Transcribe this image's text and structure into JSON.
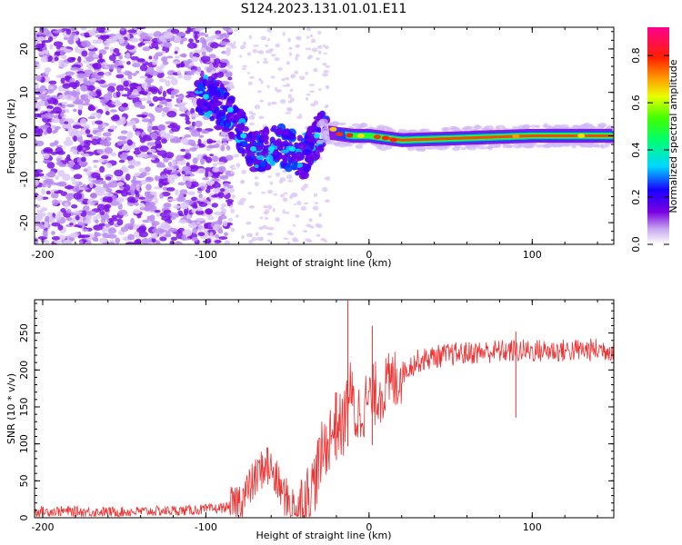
{
  "figure": {
    "title": "S124.2023.131.01.01.E11"
  },
  "chart_data": [
    {
      "type": "heatmap",
      "xlabel": "Height of straight line (km)",
      "ylabel": "Frequency (Hz)",
      "xlim": [
        -205,
        150
      ],
      "ylim": [
        -25,
        25
      ],
      "xticks": [
        -200,
        -100,
        0,
        100
      ],
      "yticks": [
        -20,
        -10,
        0,
        10,
        20
      ],
      "grid": false,
      "colorbar": {
        "label": "Normalized spectral amplitude",
        "range": [
          0,
          0.92
        ],
        "ticks": [
          0.0,
          0.2,
          0.4,
          0.6,
          0.8
        ],
        "colormap": "hsv-rainbow"
      },
      "ridge": [
        {
          "x": -100,
          "y": 9
        },
        {
          "x": -90,
          "y": 7
        },
        {
          "x": -80,
          "y": 2
        },
        {
          "x": -70,
          "y": -4
        },
        {
          "x": -55,
          "y": -2
        },
        {
          "x": -40,
          "y": -5
        },
        {
          "x": -30,
          "y": 1
        },
        {
          "x": -20,
          "y": 0.5
        },
        {
          "x": -10,
          "y": 0
        },
        {
          "x": 0,
          "y": 0
        },
        {
          "x": 20,
          "y": -1
        },
        {
          "x": 60,
          "y": -0.5
        },
        {
          "x": 100,
          "y": 0
        },
        {
          "x": 150,
          "y": 0
        }
      ]
    },
    {
      "type": "line",
      "xlabel": "Height of straight line (km)",
      "ylabel": "SNR (10 * v/v)",
      "xlim": [
        -205,
        150
      ],
      "ylim": [
        0,
        295
      ],
      "xticks": [
        -200,
        -100,
        0,
        100
      ],
      "yticks": [
        0,
        50,
        100,
        150,
        200,
        250
      ],
      "grid": false,
      "series": [
        {
          "color": "#ee3333",
          "points": [
            {
              "x": -205,
              "y": 8
            },
            {
              "x": -190,
              "y": 9
            },
            {
              "x": -170,
              "y": 8
            },
            {
              "x": -150,
              "y": 8
            },
            {
              "x": -130,
              "y": 9
            },
            {
              "x": -110,
              "y": 10
            },
            {
              "x": -95,
              "y": 12
            },
            {
              "x": -85,
              "y": 15
            },
            {
              "x": -78,
              "y": 25
            },
            {
              "x": -72,
              "y": 45
            },
            {
              "x": -66,
              "y": 65
            },
            {
              "x": -62,
              "y": 75
            },
            {
              "x": -58,
              "y": 55
            },
            {
              "x": -52,
              "y": 30
            },
            {
              "x": -46,
              "y": 15
            },
            {
              "x": -40,
              "y": 20
            },
            {
              "x": -34,
              "y": 45
            },
            {
              "x": -29,
              "y": 85
            },
            {
              "x": -24,
              "y": 110
            },
            {
              "x": -20,
              "y": 130
            },
            {
              "x": -16,
              "y": 120
            },
            {
              "x": -12,
              "y": 175
            },
            {
              "x": -8,
              "y": 135
            },
            {
              "x": -4,
              "y": 150
            },
            {
              "x": 0,
              "y": 160
            },
            {
              "x": 5,
              "y": 170
            },
            {
              "x": 10,
              "y": 175
            },
            {
              "x": 15,
              "y": 185
            },
            {
              "x": 20,
              "y": 195
            },
            {
              "x": 25,
              "y": 205
            },
            {
              "x": 30,
              "y": 212
            },
            {
              "x": 40,
              "y": 218
            },
            {
              "x": 55,
              "y": 222
            },
            {
              "x": 75,
              "y": 225
            },
            {
              "x": 95,
              "y": 226
            },
            {
              "x": 115,
              "y": 226
            },
            {
              "x": 135,
              "y": 227
            },
            {
              "x": 150,
              "y": 228
            }
          ],
          "spikes": [
            {
              "x": -13,
              "y": 295
            },
            {
              "x": 2,
              "y": 260
            },
            {
              "x": -20,
              "y": 170
            },
            {
              "x": -62,
              "y": 95
            },
            {
              "x": 90,
              "y": 252
            }
          ]
        }
      ]
    }
  ]
}
